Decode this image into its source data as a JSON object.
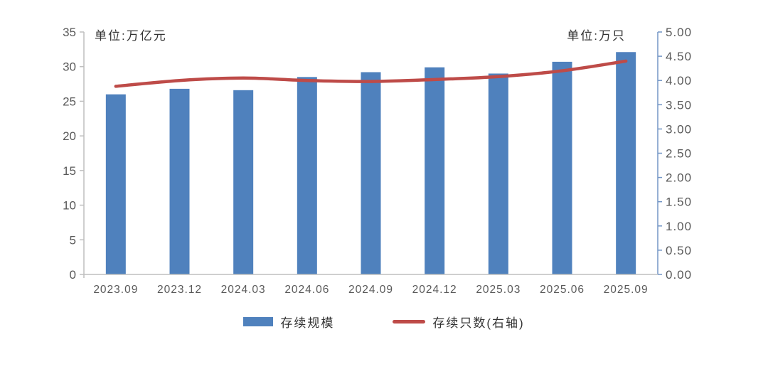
{
  "units": {
    "left": "单位:万亿元",
    "right": "单位:万只"
  },
  "legend": [
    {
      "label": "存续规模",
      "type": "bar",
      "color": "#4F81BD"
    },
    {
      "label": "存续只数(右轴)",
      "type": "line",
      "color": "#BE4B48"
    }
  ],
  "chart_data": {
    "type": "bar",
    "subtype": "bar+line combo, dual axis",
    "categories": [
      "2023.09",
      "2023.12",
      "2024.03",
      "2024.06",
      "2024.09",
      "2024.12",
      "2025.03",
      "2025.06",
      "2025.09"
    ],
    "series": [
      {
        "name": "存续规模",
        "type": "bar",
        "axis": "left",
        "color": "#4F81BD",
        "values": [
          26.0,
          26.8,
          26.6,
          28.5,
          29.2,
          29.9,
          29.0,
          30.7,
          32.1
        ]
      },
      {
        "name": "存续只数(右轴)",
        "type": "line",
        "axis": "right",
        "color": "#BE4B48",
        "values": [
          3.88,
          4.0,
          4.05,
          4.0,
          3.98,
          4.02,
          4.08,
          4.2,
          4.4
        ]
      }
    ],
    "left_axis": {
      "min": 0,
      "max": 35,
      "step": 5,
      "unit": "单位:万亿元",
      "tick_labels": [
        "0",
        "5",
        "10",
        "15",
        "20",
        "25",
        "30",
        "35"
      ],
      "text_color": "#595959",
      "spine_color": "#BFBFBF"
    },
    "right_axis": {
      "min": 0,
      "max": 5,
      "step": 0.5,
      "unit": "单位:万只",
      "tick_labels": [
        "0.00",
        "0.50",
        "1.00",
        "1.50",
        "2.00",
        "2.50",
        "3.00",
        "3.50",
        "4.00",
        "4.50",
        "5.00"
      ],
      "text_color": "#595959",
      "spine_color": "#7396C6"
    },
    "grid": false,
    "legend_position": "bottom",
    "background": "#ffffff"
  }
}
